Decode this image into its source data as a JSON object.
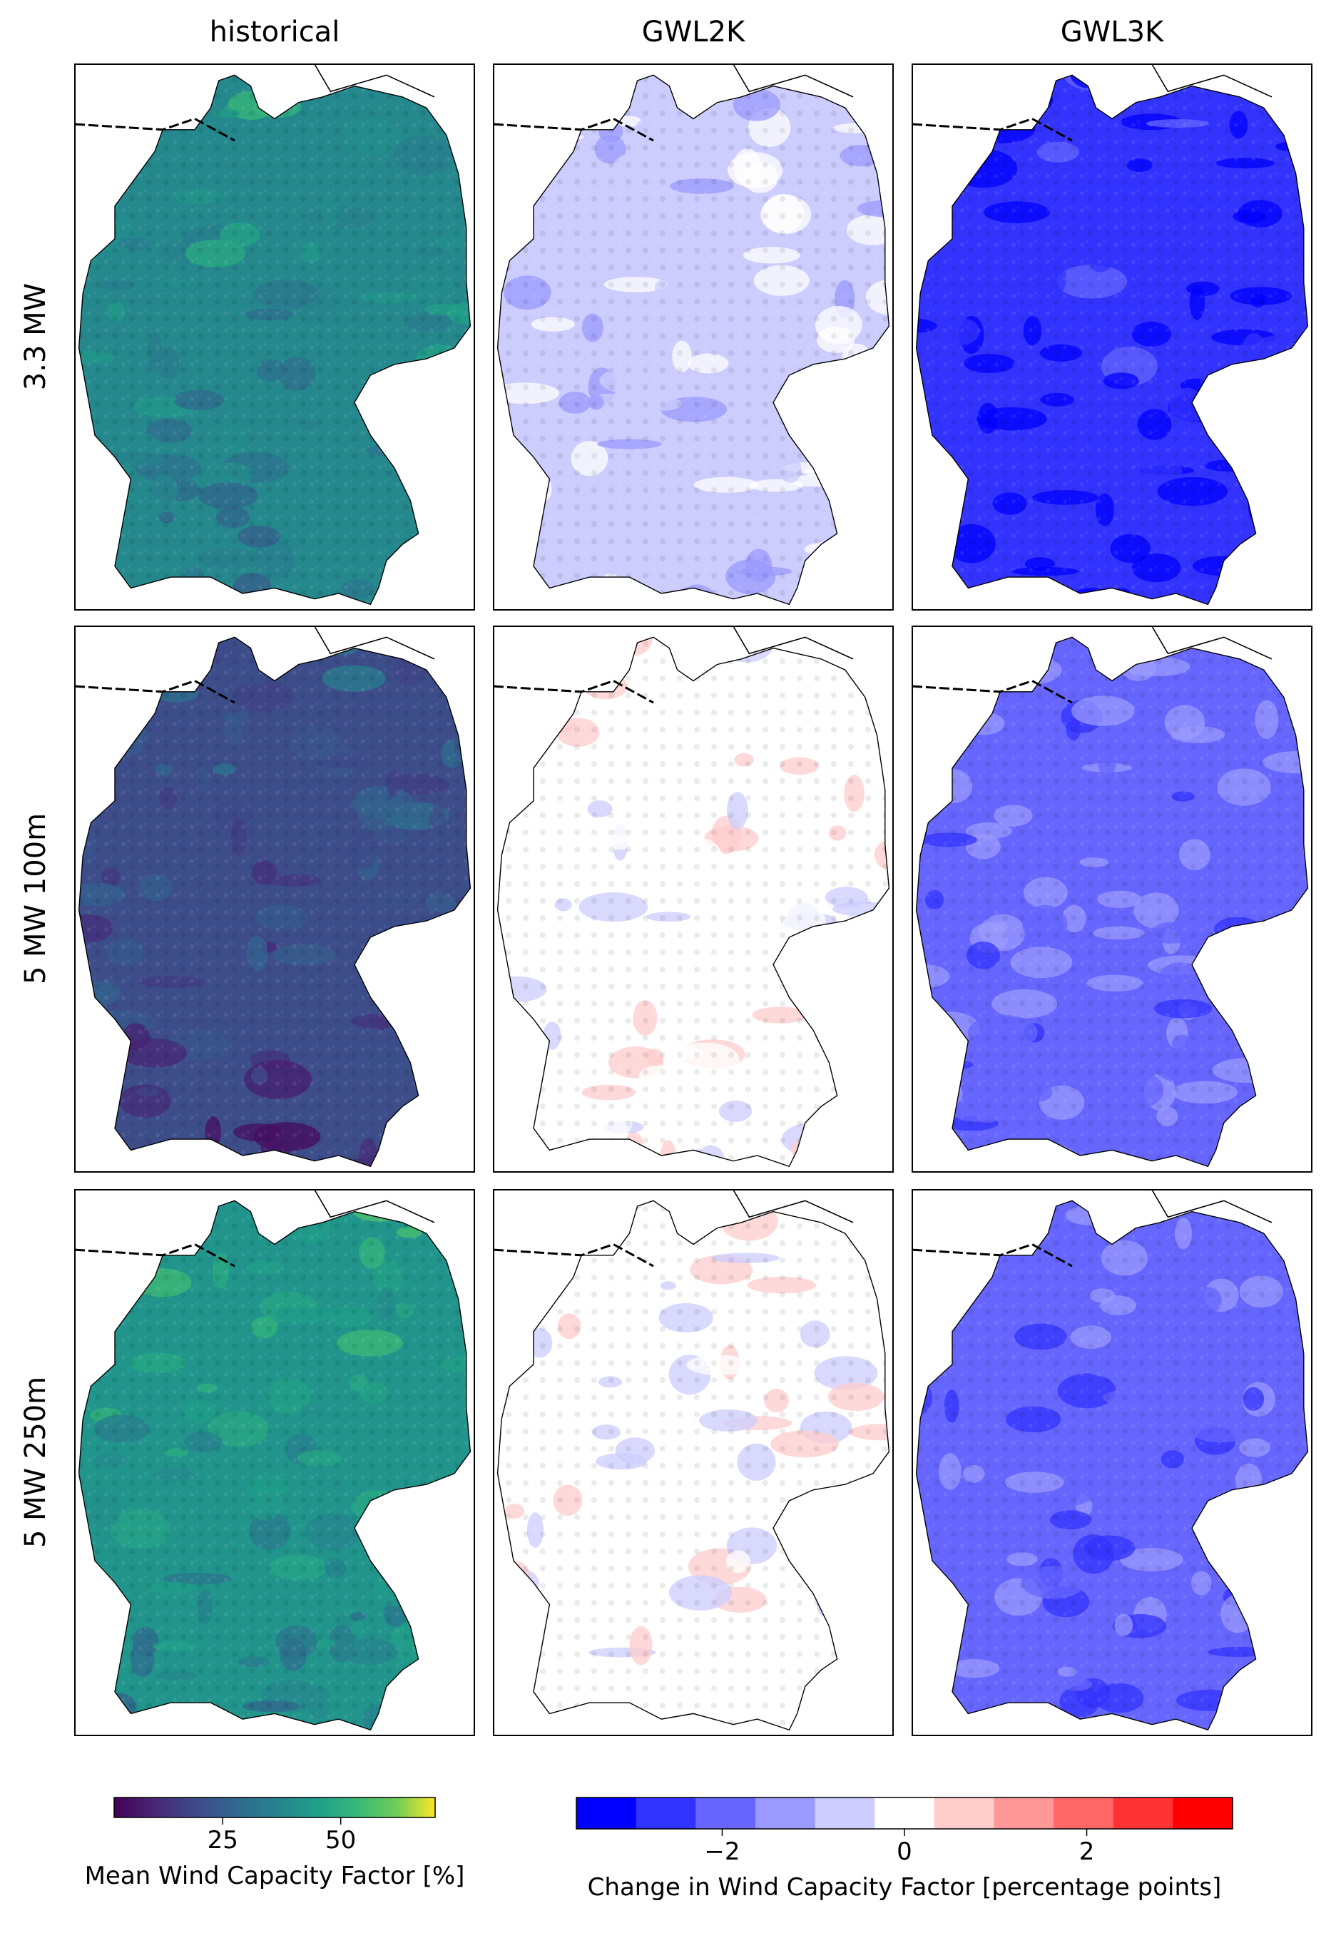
{
  "chart_data": {
    "type": "heatmap",
    "columns": [
      "historical",
      "GWL2K",
      "GWL3K"
    ],
    "rows": [
      "3.3 MW",
      "5 MW 100m",
      "5 MW 250m"
    ],
    "panels": [
      {
        "row": "3.3 MW",
        "column": "historical",
        "cmap": "viridis",
        "mean_level": 38
      },
      {
        "row": "3.3 MW",
        "column": "GWL2K",
        "cmap": "bwr",
        "dominant_level": -0.5
      },
      {
        "row": "3.3 MW",
        "column": "GWL3K",
        "cmap": "bwr",
        "dominant_level": -2.8
      },
      {
        "row": "5 MW 100m",
        "column": "historical",
        "cmap": "viridis",
        "mean_level": 20
      },
      {
        "row": "5 MW 100m",
        "column": "GWL2K",
        "cmap": "bwr",
        "dominant_level": 0
      },
      {
        "row": "5 MW 100m",
        "column": "GWL3K",
        "cmap": "bwr",
        "dominant_level": -1.8
      },
      {
        "row": "5 MW 250m",
        "column": "historical",
        "cmap": "viridis",
        "mean_level": 42
      },
      {
        "row": "5 MW 250m",
        "column": "GWL2K",
        "cmap": "bwr",
        "dominant_level": 0
      },
      {
        "row": "5 MW 250m",
        "column": "GWL3K",
        "cmap": "bwr",
        "dominant_level": -1.8
      }
    ],
    "colorbar_historical": {
      "label": "Mean Wind Capacity Factor [%]",
      "ticks": [
        25,
        50
      ],
      "tick_labels": [
        "25",
        "50"
      ],
      "range": [
        2,
        70
      ],
      "cmap": "viridis"
    },
    "colorbar_change": {
      "label": "Change in Wind Capacity Factor [percentage points]",
      "ticks": [
        -2,
        0,
        2
      ],
      "tick_labels": [
        "−2",
        "0",
        "2"
      ],
      "range": [
        -3.6,
        3.6
      ],
      "colors": [
        "#0000ff",
        "#3333ff",
        "#6666ff",
        "#9999ff",
        "#ccccff",
        "#ffffff",
        "#ffcccc",
        "#ff9999",
        "#ff6666",
        "#ff3333",
        "#ff0000"
      ]
    }
  }
}
